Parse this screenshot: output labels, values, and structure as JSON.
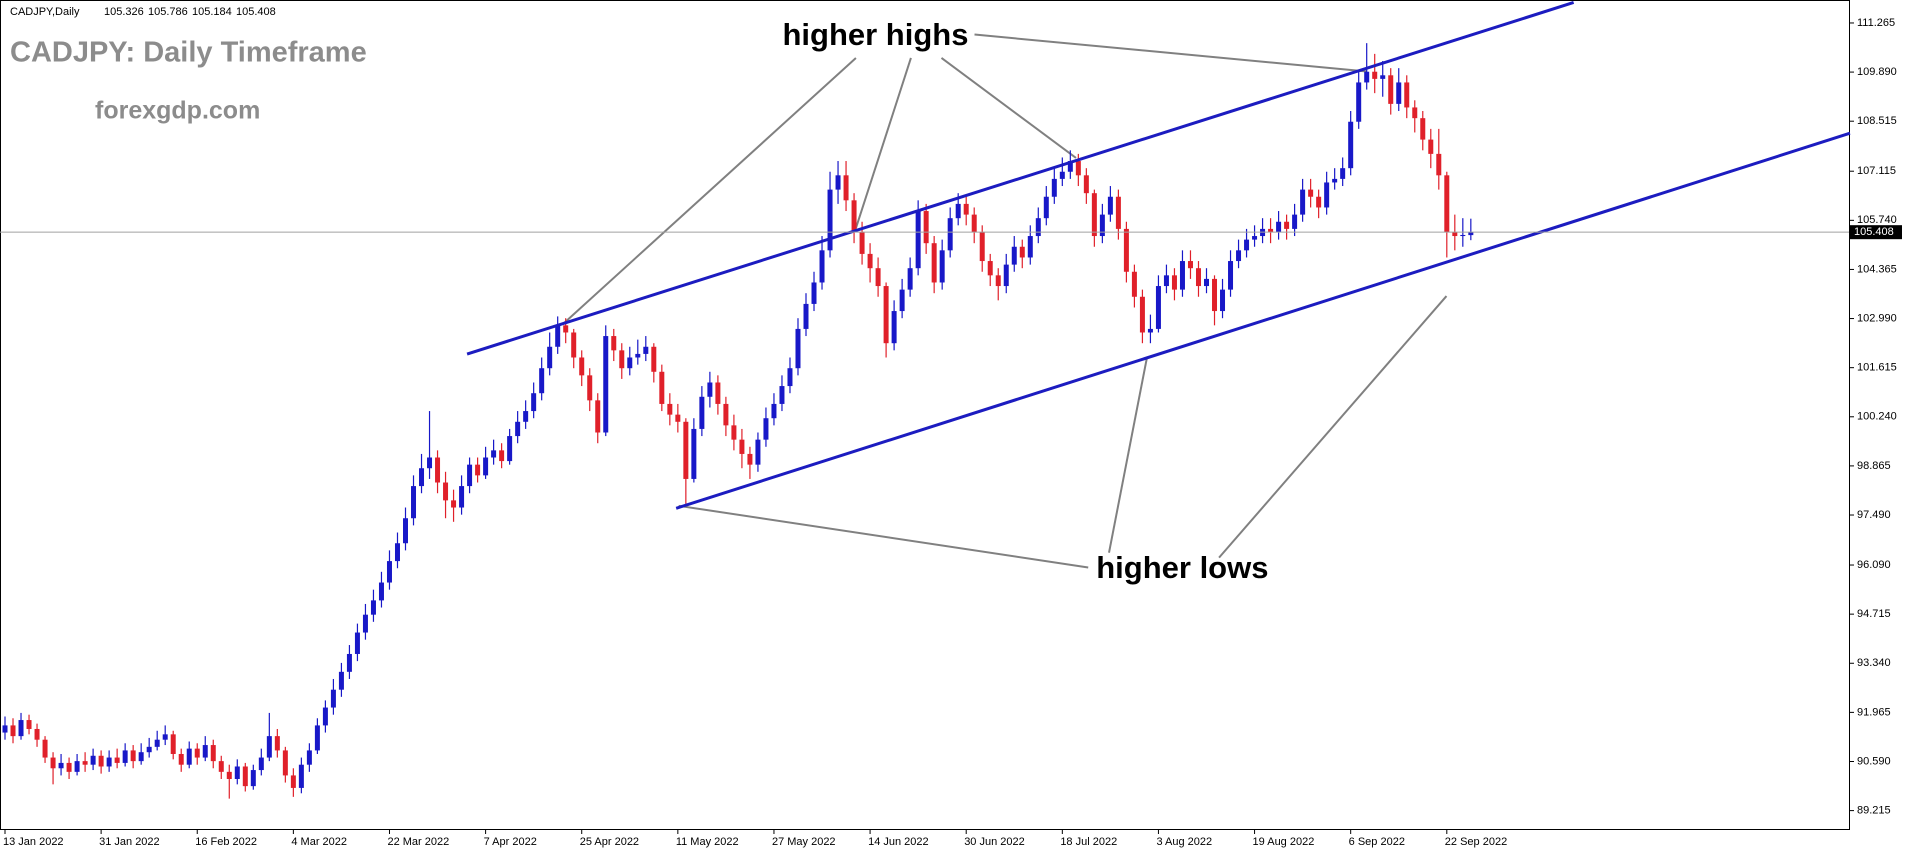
{
  "chart_data": {
    "type": "candlestick",
    "header_symbol": "CADJPY,Daily",
    "title": "CADJPY: Daily Timeframe",
    "subtitle": "forexgdp.com",
    "annotations": [
      "higher highs",
      "higher lows"
    ],
    "bull_color": "#1818c8",
    "bear_color": "#e0202a",
    "channel_color": "#1c1cc0",
    "ylim": [
      88.7,
      111.88
    ],
    "yticks": [
      89.215,
      {
        "value": 90.59,
        "label": "90.590"
      },
      91.965,
      {
        "value": 93.34,
        "label": "93.340"
      },
      94.715,
      {
        "value": 96.09,
        "label": "96.090"
      },
      {
        "value": 97.49,
        "label": "97.490"
      },
      98.865,
      {
        "value": 100.24,
        "label": "100.240"
      },
      101.615,
      {
        "value": 102.99,
        "label": "102.990"
      },
      104.365,
      {
        "value": 105.74,
        "label": "105.740"
      },
      107.115,
      108.515,
      {
        "value": 109.89,
        "label": "109.890"
      },
      111.265
    ],
    "categories": [
      "13 Jan 2022",
      null,
      null,
      null,
      null,
      null,
      null,
      null,
      null,
      null,
      null,
      null,
      "31 Jan 2022",
      null,
      null,
      null,
      null,
      null,
      null,
      null,
      null,
      null,
      null,
      null,
      "16 Feb 2022",
      null,
      null,
      null,
      null,
      null,
      null,
      null,
      null,
      null,
      null,
      null,
      "4 Mar 2022",
      null,
      null,
      null,
      null,
      null,
      null,
      null,
      null,
      null,
      null,
      null,
      "22 Mar 2022",
      null,
      null,
      null,
      null,
      null,
      null,
      null,
      null,
      null,
      null,
      null,
      "7 Apr 2022",
      null,
      null,
      null,
      null,
      null,
      null,
      null,
      null,
      null,
      null,
      null,
      "25 Apr 2022",
      null,
      null,
      null,
      null,
      null,
      null,
      null,
      null,
      null,
      null,
      null,
      "11 May 2022",
      null,
      null,
      null,
      null,
      null,
      null,
      null,
      null,
      null,
      null,
      null,
      "27 May 2022",
      null,
      null,
      null,
      null,
      null,
      null,
      null,
      null,
      null,
      null,
      null,
      "14 Jun 2022",
      null,
      null,
      null,
      null,
      null,
      null,
      null,
      null,
      null,
      null,
      null,
      "30 Jun 2022",
      null,
      null,
      null,
      null,
      null,
      null,
      null,
      null,
      null,
      null,
      null,
      "18 Jul 2022",
      null,
      null,
      null,
      null,
      null,
      null,
      null,
      null,
      null,
      null,
      null,
      "3 Aug 2022",
      null,
      null,
      null,
      null,
      null,
      null,
      null,
      null,
      null,
      null,
      null,
      "19 Aug 2022",
      null,
      null,
      null,
      null,
      null,
      null,
      null,
      null,
      null,
      null,
      null,
      "6 Sep 2022",
      null,
      null,
      null,
      null,
      null,
      null,
      null,
      null,
      null,
      null,
      null,
      "22 Sep 2022",
      null,
      null,
      null
    ],
    "open": [
      91.4,
      91.6,
      91.3,
      91.75,
      91.5,
      91.2,
      90.7,
      90.4,
      90.55,
      90.3,
      90.6,
      90.5,
      90.75,
      90.45,
      90.7,
      90.55,
      90.9,
      90.6,
      90.85,
      91,
      91.2,
      91.35,
      90.8,
      90.5,
      90.95,
      90.7,
      91.05,
      90.6,
      90.3,
      90.1,
      90.45,
      89.9,
      90.35,
      90.7,
      91.3,
      90.9,
      90.2,
      89.85,
      90.5,
      90.9,
      91.6,
      92.1,
      92.6,
      93.1,
      93.6,
      94.2,
      94.7,
      95.1,
      95.6,
      96.2,
      96.7,
      97.4,
      98.3,
      98.8,
      99.1,
      98.4,
      97.9,
      97.7,
      98.3,
      98.9,
      98.6,
      99.1,
      99.3,
      99,
      99.7,
      100.1,
      100.4,
      100.9,
      101.6,
      102.2,
      102.8,
      102.6,
      101.9,
      101.4,
      100.7,
      99.8,
      102.5,
      102.1,
      101.6,
      101.9,
      102,
      102.2,
      101.5,
      100.6,
      100.3,
      100.1,
      98.5,
      99.9,
      100.8,
      101.2,
      100.6,
      100,
      99.6,
      99.2,
      98.9,
      99.6,
      100.2,
      100.6,
      101.1,
      101.6,
      102.7,
      103.4,
      104,
      104.9,
      106.6,
      107,
      106.3,
      105.4,
      104.8,
      104.4,
      103.9,
      102.3,
      103.2,
      103.8,
      104.4,
      106,
      105.1,
      104,
      104.9,
      105.8,
      106.2,
      105.9,
      105.4,
      104.6,
      104.2,
      103.9,
      104.5,
      105,
      104.7,
      105.3,
      105.8,
      106.4,
      106.9,
      107.1,
      107.4,
      107,
      106.5,
      105.3,
      105.9,
      106.4,
      105.5,
      104.3,
      103.6,
      102.6,
      102.7,
      103.9,
      104.2,
      103.8,
      104.6,
      104.4,
      103.9,
      104.1,
      103.2,
      103.8,
      104.6,
      104.9,
      105.2,
      105.3,
      105.5,
      105.4,
      105.7,
      105.5,
      105.9,
      106.6,
      106.4,
      106.1,
      106.8,
      106.9,
      107.2,
      108.5,
      109.6,
      109.9,
      109.7,
      109.8,
      109,
      109.6,
      108.9,
      108.6,
      108,
      107.6,
      107,
      105.4,
      105.3,
      105.326
    ],
    "high": [
      91.85,
      91.8,
      91.95,
      91.9,
      91.65,
      91.3,
      90.85,
      90.8,
      90.7,
      90.8,
      90.85,
      90.95,
      90.9,
      90.9,
      90.95,
      91.1,
      91.05,
      91.1,
      91.25,
      91.45,
      91.6,
      91.45,
      90.95,
      91.15,
      91.1,
      91.3,
      91.2,
      90.75,
      90.5,
      90.65,
      90.55,
      90.5,
      90.95,
      91.95,
      91.5,
      91,
      90.4,
      90.7,
      91.1,
      91.8,
      92.3,
      92.9,
      93.35,
      93.85,
      94.45,
      95,
      95.4,
      95.9,
      96.5,
      97,
      97.7,
      98.6,
      99.2,
      100.4,
      99.3,
      98.7,
      98.2,
      98.6,
      99.1,
      99.1,
      99.4,
      99.6,
      99.5,
      99.9,
      100.4,
      100.7,
      101.2,
      101.9,
      102.6,
      103.05,
      103,
      102.7,
      102.1,
      101.6,
      100.9,
      102.8,
      102.7,
      102.3,
      102.2,
      102.4,
      102.5,
      102.3,
      101.7,
      100.9,
      100.6,
      100.2,
      100.2,
      101.1,
      101.5,
      101.4,
      100.8,
      100.3,
      99.9,
      99.4,
      99.8,
      100.5,
      100.9,
      101.4,
      101.9,
      103,
      103.7,
      104.3,
      105.3,
      107.1,
      107.4,
      107.4,
      106.5,
      105.7,
      105.1,
      104.7,
      104,
      103.5,
      104.1,
      104.7,
      106.3,
      106.2,
      105.3,
      105.2,
      106.1,
      106.5,
      106.4,
      106.1,
      105.6,
      104.8,
      104.4,
      104.8,
      105.3,
      105.2,
      105.6,
      106.1,
      106.7,
      107.2,
      107.5,
      107.7,
      107.6,
      107.2,
      106.6,
      106.2,
      106.7,
      106.6,
      105.7,
      104.5,
      103.8,
      103.1,
      104.2,
      104.5,
      104.4,
      104.9,
      104.9,
      104.6,
      104.4,
      104.2,
      104.1,
      104.9,
      105.2,
      105.5,
      105.6,
      105.8,
      105.8,
      106,
      105.9,
      106.2,
      106.9,
      106.9,
      106.6,
      107.1,
      107.2,
      107.5,
      108.8,
      109.9,
      110.7,
      110.4,
      110.2,
      110,
      110,
      109.8,
      109.1,
      108.8,
      108.3,
      108.3,
      107.1,
      105.9,
      105.8,
      105.786
    ],
    "low": [
      91.2,
      91.1,
      91.2,
      91.35,
      91,
      90.55,
      89.95,
      90.2,
      90.1,
      90.2,
      90.3,
      90.35,
      90.25,
      90.3,
      90.4,
      90.45,
      90.4,
      90.5,
      90.7,
      90.9,
      91.05,
      90.65,
      90.3,
      90.4,
      90.5,
      90.6,
      90.4,
      90.1,
      89.55,
      89.95,
      89.75,
      89.8,
      90.2,
      90.6,
      90.7,
      90,
      89.6,
      89.7,
      90.3,
      90.8,
      91.4,
      91.9,
      92.4,
      92.9,
      93.4,
      94,
      94.5,
      94.9,
      95.4,
      96,
      96.5,
      97.2,
      98.1,
      98.5,
      98.1,
      97.4,
      97.3,
      97.5,
      98.1,
      98.4,
      98.5,
      98.9,
      98.8,
      98.9,
      99.5,
      99.9,
      100.2,
      100.7,
      101.4,
      102,
      102.3,
      101.6,
      101.1,
      100.4,
      99.5,
      99.7,
      101.8,
      101.3,
      101.4,
      101.7,
      101.8,
      101.2,
      100.4,
      100,
      99.8,
      97.8,
      98.4,
      99.7,
      100.5,
      100.3,
      99.7,
      99.3,
      98.8,
      98.5,
      98.7,
      99.4,
      100,
      100.4,
      100.9,
      101.4,
      102.5,
      103.2,
      103.8,
      104.7,
      106.2,
      106,
      105.1,
      104.5,
      104,
      103.6,
      101.9,
      102.1,
      103,
      103.6,
      104.2,
      104.8,
      103.7,
      103.8,
      104.7,
      105.6,
      105.6,
      105.1,
      104.3,
      103.9,
      103.5,
      103.7,
      104.3,
      104.4,
      104.5,
      105.1,
      105.6,
      106.2,
      106.7,
      106.9,
      106.7,
      106.2,
      105,
      105.1,
      105.7,
      105.2,
      104,
      103.3,
      102.3,
      102.3,
      102.6,
      103.7,
      103.5,
      103.6,
      104.1,
      103.6,
      103.7,
      102.8,
      103,
      103.6,
      104.4,
      104.7,
      105,
      105.1,
      105.1,
      105.2,
      105.2,
      105.3,
      105.7,
      106.1,
      105.8,
      105.9,
      106.6,
      106.7,
      107,
      108.3,
      109.4,
      109.3,
      109.2,
      108.7,
      108.8,
      108.6,
      108.2,
      107.7,
      107.2,
      106.6,
      104.7,
      104.9,
      105,
      105.184
    ],
    "close": [
      91.6,
      91.3,
      91.75,
      91.5,
      91.2,
      90.7,
      90.4,
      90.55,
      90.3,
      90.6,
      90.5,
      90.75,
      90.45,
      90.7,
      90.55,
      90.9,
      90.6,
      90.85,
      91,
      91.2,
      91.35,
      90.8,
      90.5,
      90.95,
      90.7,
      91.05,
      90.6,
      90.3,
      90.1,
      90.45,
      89.9,
      90.35,
      90.7,
      91.3,
      90.9,
      90.2,
      89.85,
      90.5,
      90.9,
      91.6,
      92.1,
      92.6,
      93.1,
      93.6,
      94.2,
      94.7,
      95.1,
      95.6,
      96.2,
      96.7,
      97.4,
      98.3,
      98.8,
      99.1,
      98.4,
      97.9,
      97.7,
      98.3,
      98.9,
      98.6,
      99.1,
      99.3,
      99,
      99.7,
      100.1,
      100.4,
      100.9,
      101.6,
      102.2,
      102.8,
      102.6,
      101.9,
      101.4,
      100.7,
      99.8,
      102.5,
      102.1,
      101.6,
      101.9,
      102,
      102.2,
      101.5,
      100.6,
      100.3,
      100.1,
      98.5,
      99.9,
      100.8,
      101.2,
      100.6,
      100,
      99.6,
      99.2,
      98.9,
      99.6,
      100.2,
      100.6,
      101.1,
      101.6,
      102.7,
      103.4,
      104,
      104.9,
      106.6,
      107,
      106.3,
      105.4,
      104.8,
      104.4,
      103.9,
      102.3,
      103.2,
      103.8,
      104.4,
      106,
      105.1,
      104,
      104.9,
      105.8,
      106.2,
      105.9,
      105.4,
      104.6,
      104.2,
      103.9,
      104.5,
      105,
      104.7,
      105.3,
      105.8,
      106.4,
      106.9,
      107.1,
      107.4,
      107,
      106.5,
      105.3,
      105.9,
      106.4,
      105.5,
      104.3,
      103.6,
      102.6,
      102.7,
      103.9,
      104.2,
      103.8,
      104.6,
      104.4,
      103.9,
      104.1,
      103.2,
      103.8,
      104.6,
      104.9,
      105.2,
      105.3,
      105.5,
      105.4,
      105.7,
      105.5,
      105.9,
      106.6,
      106.4,
      106.1,
      106.8,
      106.9,
      107.2,
      108.5,
      109.6,
      109.9,
      109.7,
      109.8,
      109,
      109.6,
      108.9,
      108.6,
      108,
      107.6,
      107,
      105.4,
      105.3,
      105.33,
      105.408
    ]
  }
}
